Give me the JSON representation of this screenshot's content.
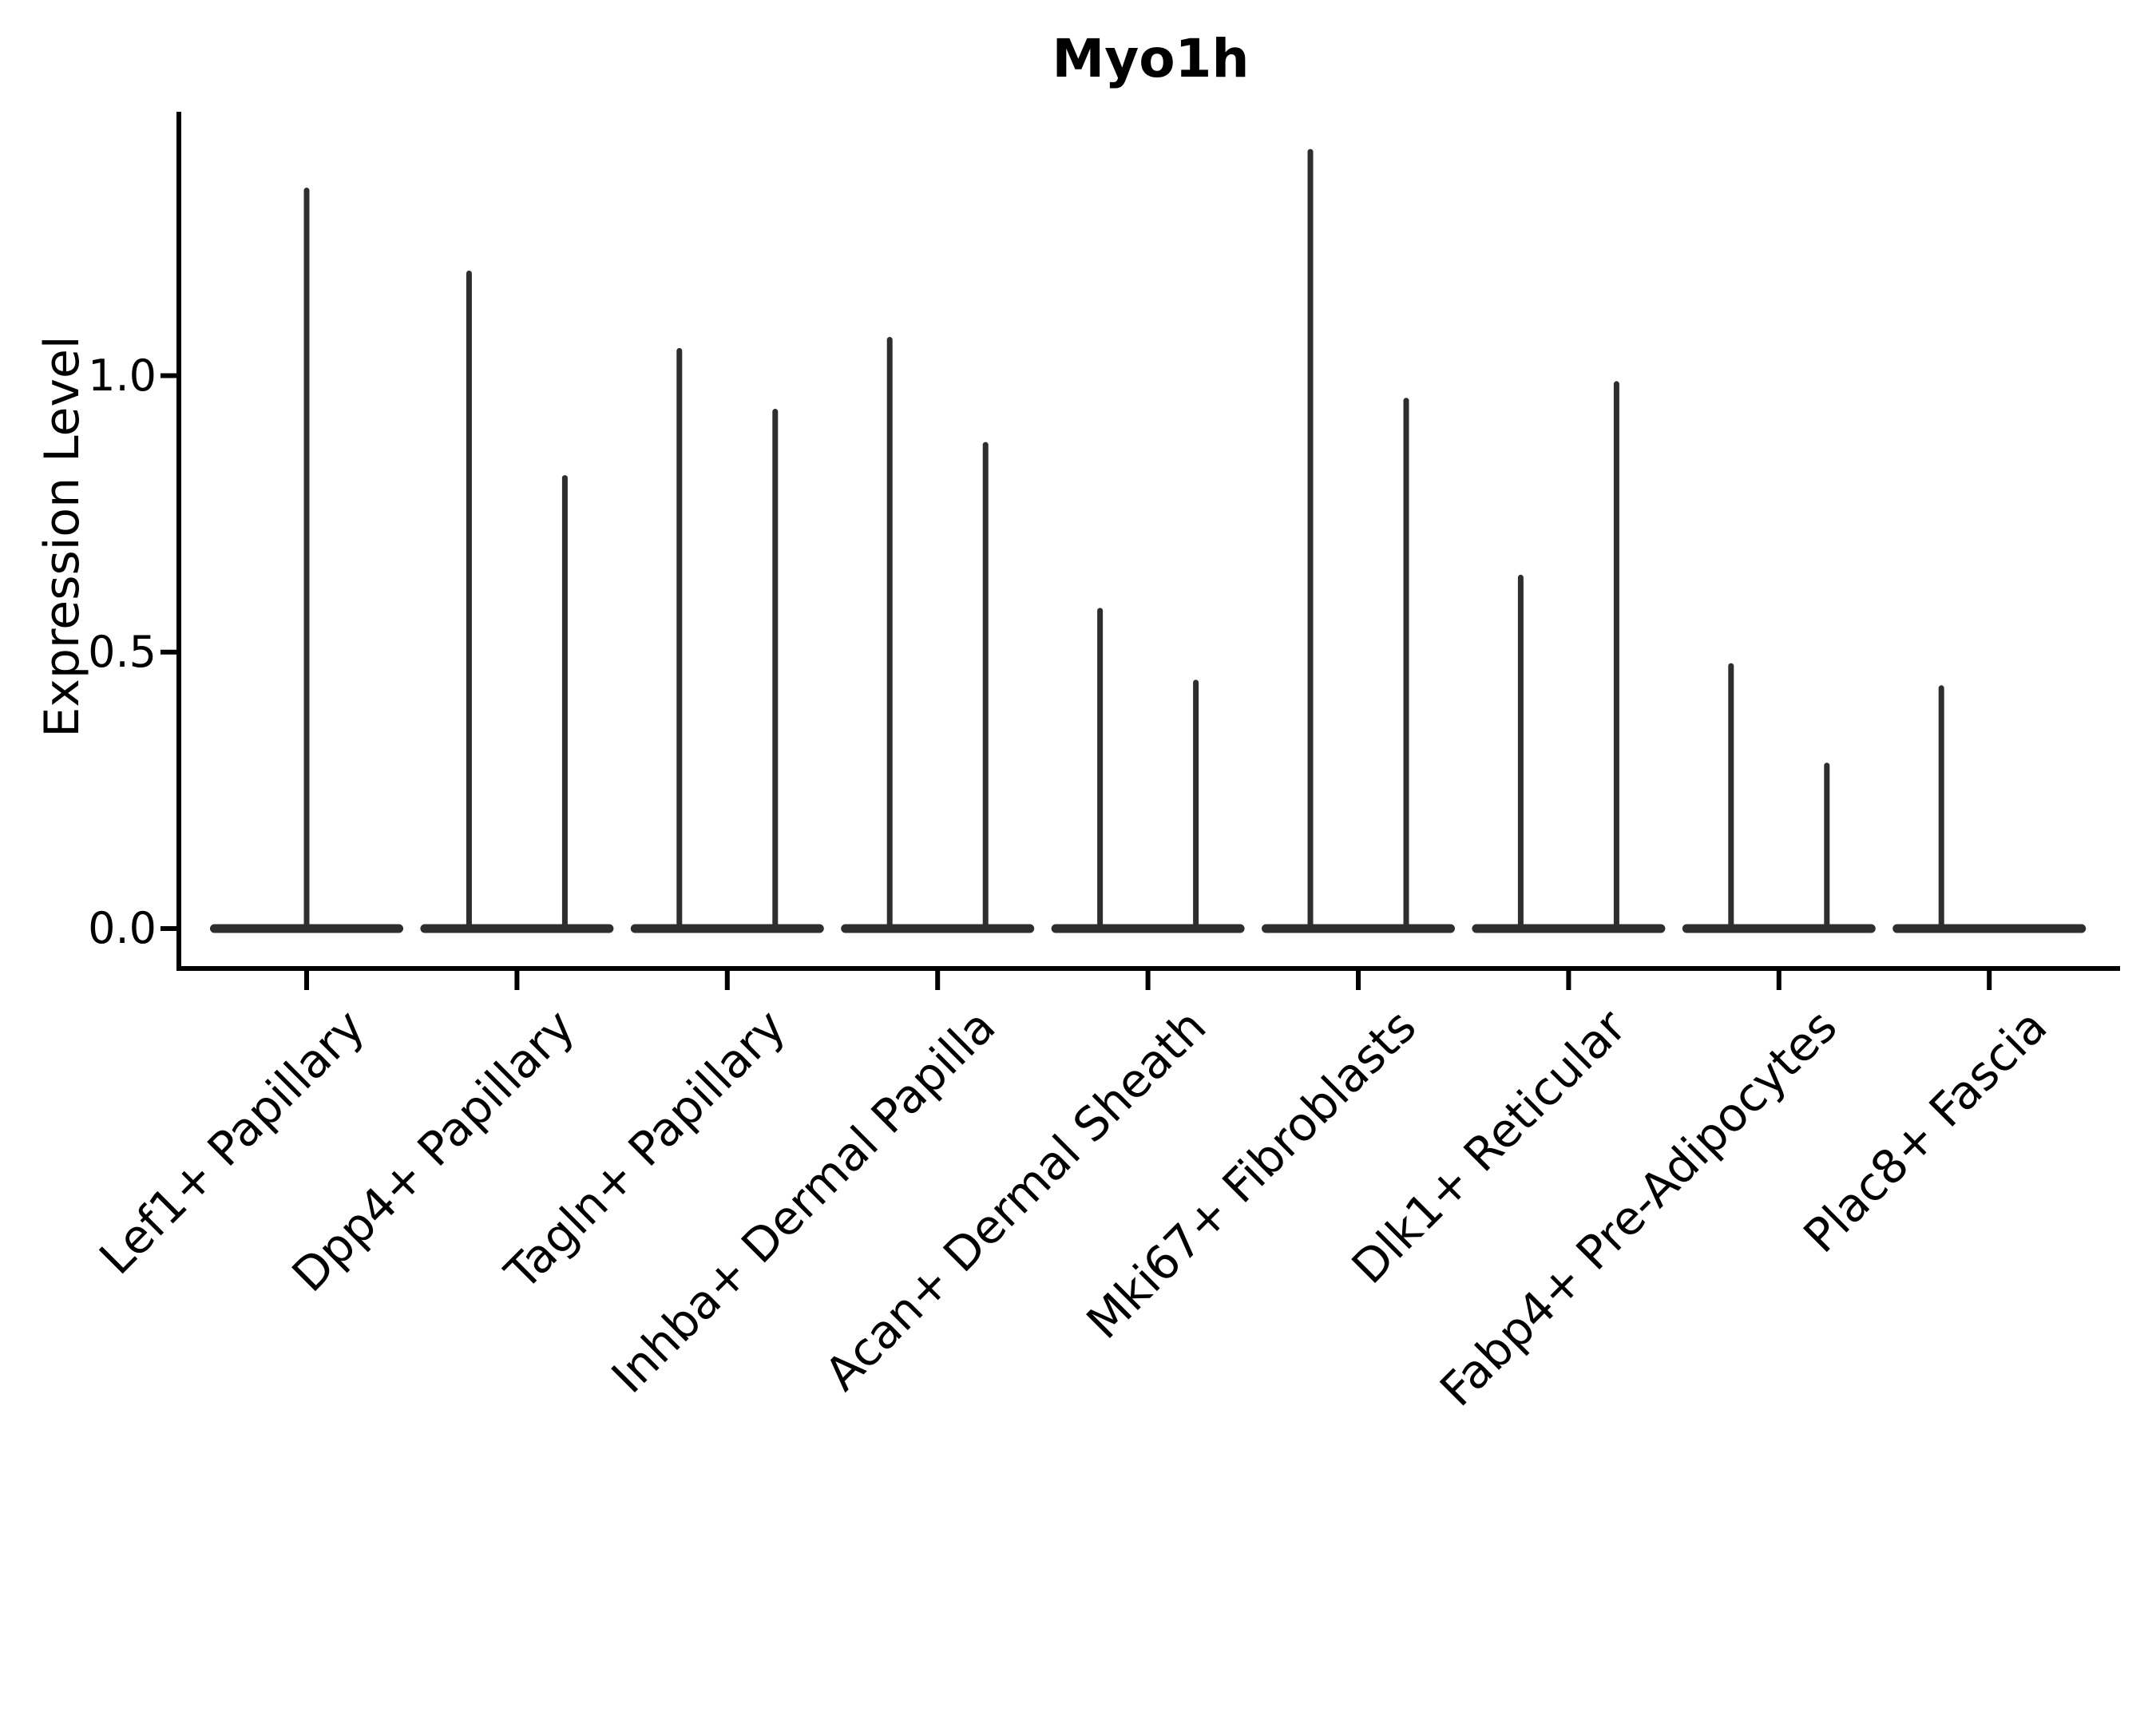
{
  "title": "Myo1h",
  "y_axis": {
    "label": "Expression Level",
    "tick_labels": [
      "0.0",
      "0.5",
      "1.0"
    ],
    "tick_values": [
      0.0,
      0.5,
      1.0
    ]
  },
  "x_axis": {
    "categories": [
      "Lef1+ Papillary",
      "Dpp4+ Papillary",
      "Tagln+ Papillary",
      "Inhba+ Dermal Papilla",
      "Acan+ Dermal Sheath",
      "Mki67+ Fibroblasts",
      "Dlk1+ Reticular",
      "Fabp4+ Pre-Adipocytes",
      "Plac8+ Fascia"
    ]
  },
  "chart_data": {
    "type": "violin",
    "title": "Myo1h",
    "xlabel": "",
    "ylabel": "Expression Level",
    "ylim": [
      0,
      1.48
    ],
    "yticks": [
      0.0,
      0.5,
      1.0
    ],
    "grid": false,
    "legend": false,
    "baseline_value": 0.0,
    "categories": [
      "Lef1+ Papillary",
      "Dpp4+ Papillary",
      "Tagln+ Papillary",
      "Inhba+ Dermal Papilla",
      "Acan+ Dermal Sheath",
      "Mki67+ Fibroblasts",
      "Dlk1+ Reticular",
      "Fabp4+ Pre-Adipocytes",
      "Plac8+ Fascia"
    ],
    "violins": [
      {
        "category": "Lef1+ Papillary",
        "spikes": [
          {
            "pos": "center",
            "max": 1.34
          }
        ]
      },
      {
        "category": "Dpp4+ Papillary",
        "spikes": [
          {
            "pos": "left",
            "max": 1.19
          },
          {
            "pos": "right",
            "max": 0.82
          }
        ]
      },
      {
        "category": "Tagln+ Papillary",
        "spikes": [
          {
            "pos": "left",
            "max": 1.05
          },
          {
            "pos": "right",
            "max": 0.94
          }
        ]
      },
      {
        "category": "Inhba+ Dermal Papilla",
        "spikes": [
          {
            "pos": "left",
            "max": 1.07
          },
          {
            "pos": "right",
            "max": 0.88
          }
        ]
      },
      {
        "category": "Acan+ Dermal Sheath",
        "spikes": [
          {
            "pos": "left",
            "max": 0.58
          },
          {
            "pos": "right",
            "max": 0.45
          }
        ]
      },
      {
        "category": "Mki67+ Fibroblasts",
        "spikes": [
          {
            "pos": "left",
            "max": 1.41
          },
          {
            "pos": "right",
            "max": 0.96
          }
        ]
      },
      {
        "category": "Dlk1+ Reticular",
        "spikes": [
          {
            "pos": "left",
            "max": 0.64
          },
          {
            "pos": "right",
            "max": 0.99
          }
        ]
      },
      {
        "category": "Fabp4+ Pre-Adipocytes",
        "spikes": [
          {
            "pos": "left",
            "max": 0.48
          },
          {
            "pos": "right",
            "max": 0.3
          }
        ]
      },
      {
        "category": "Plac8+ Fascia",
        "spikes": [
          {
            "pos": "left",
            "max": 0.44
          }
        ]
      }
    ]
  },
  "colors": {
    "violin": "#2e2e2e",
    "axis": "#000000",
    "text": "#000000",
    "background": "#ffffff"
  }
}
